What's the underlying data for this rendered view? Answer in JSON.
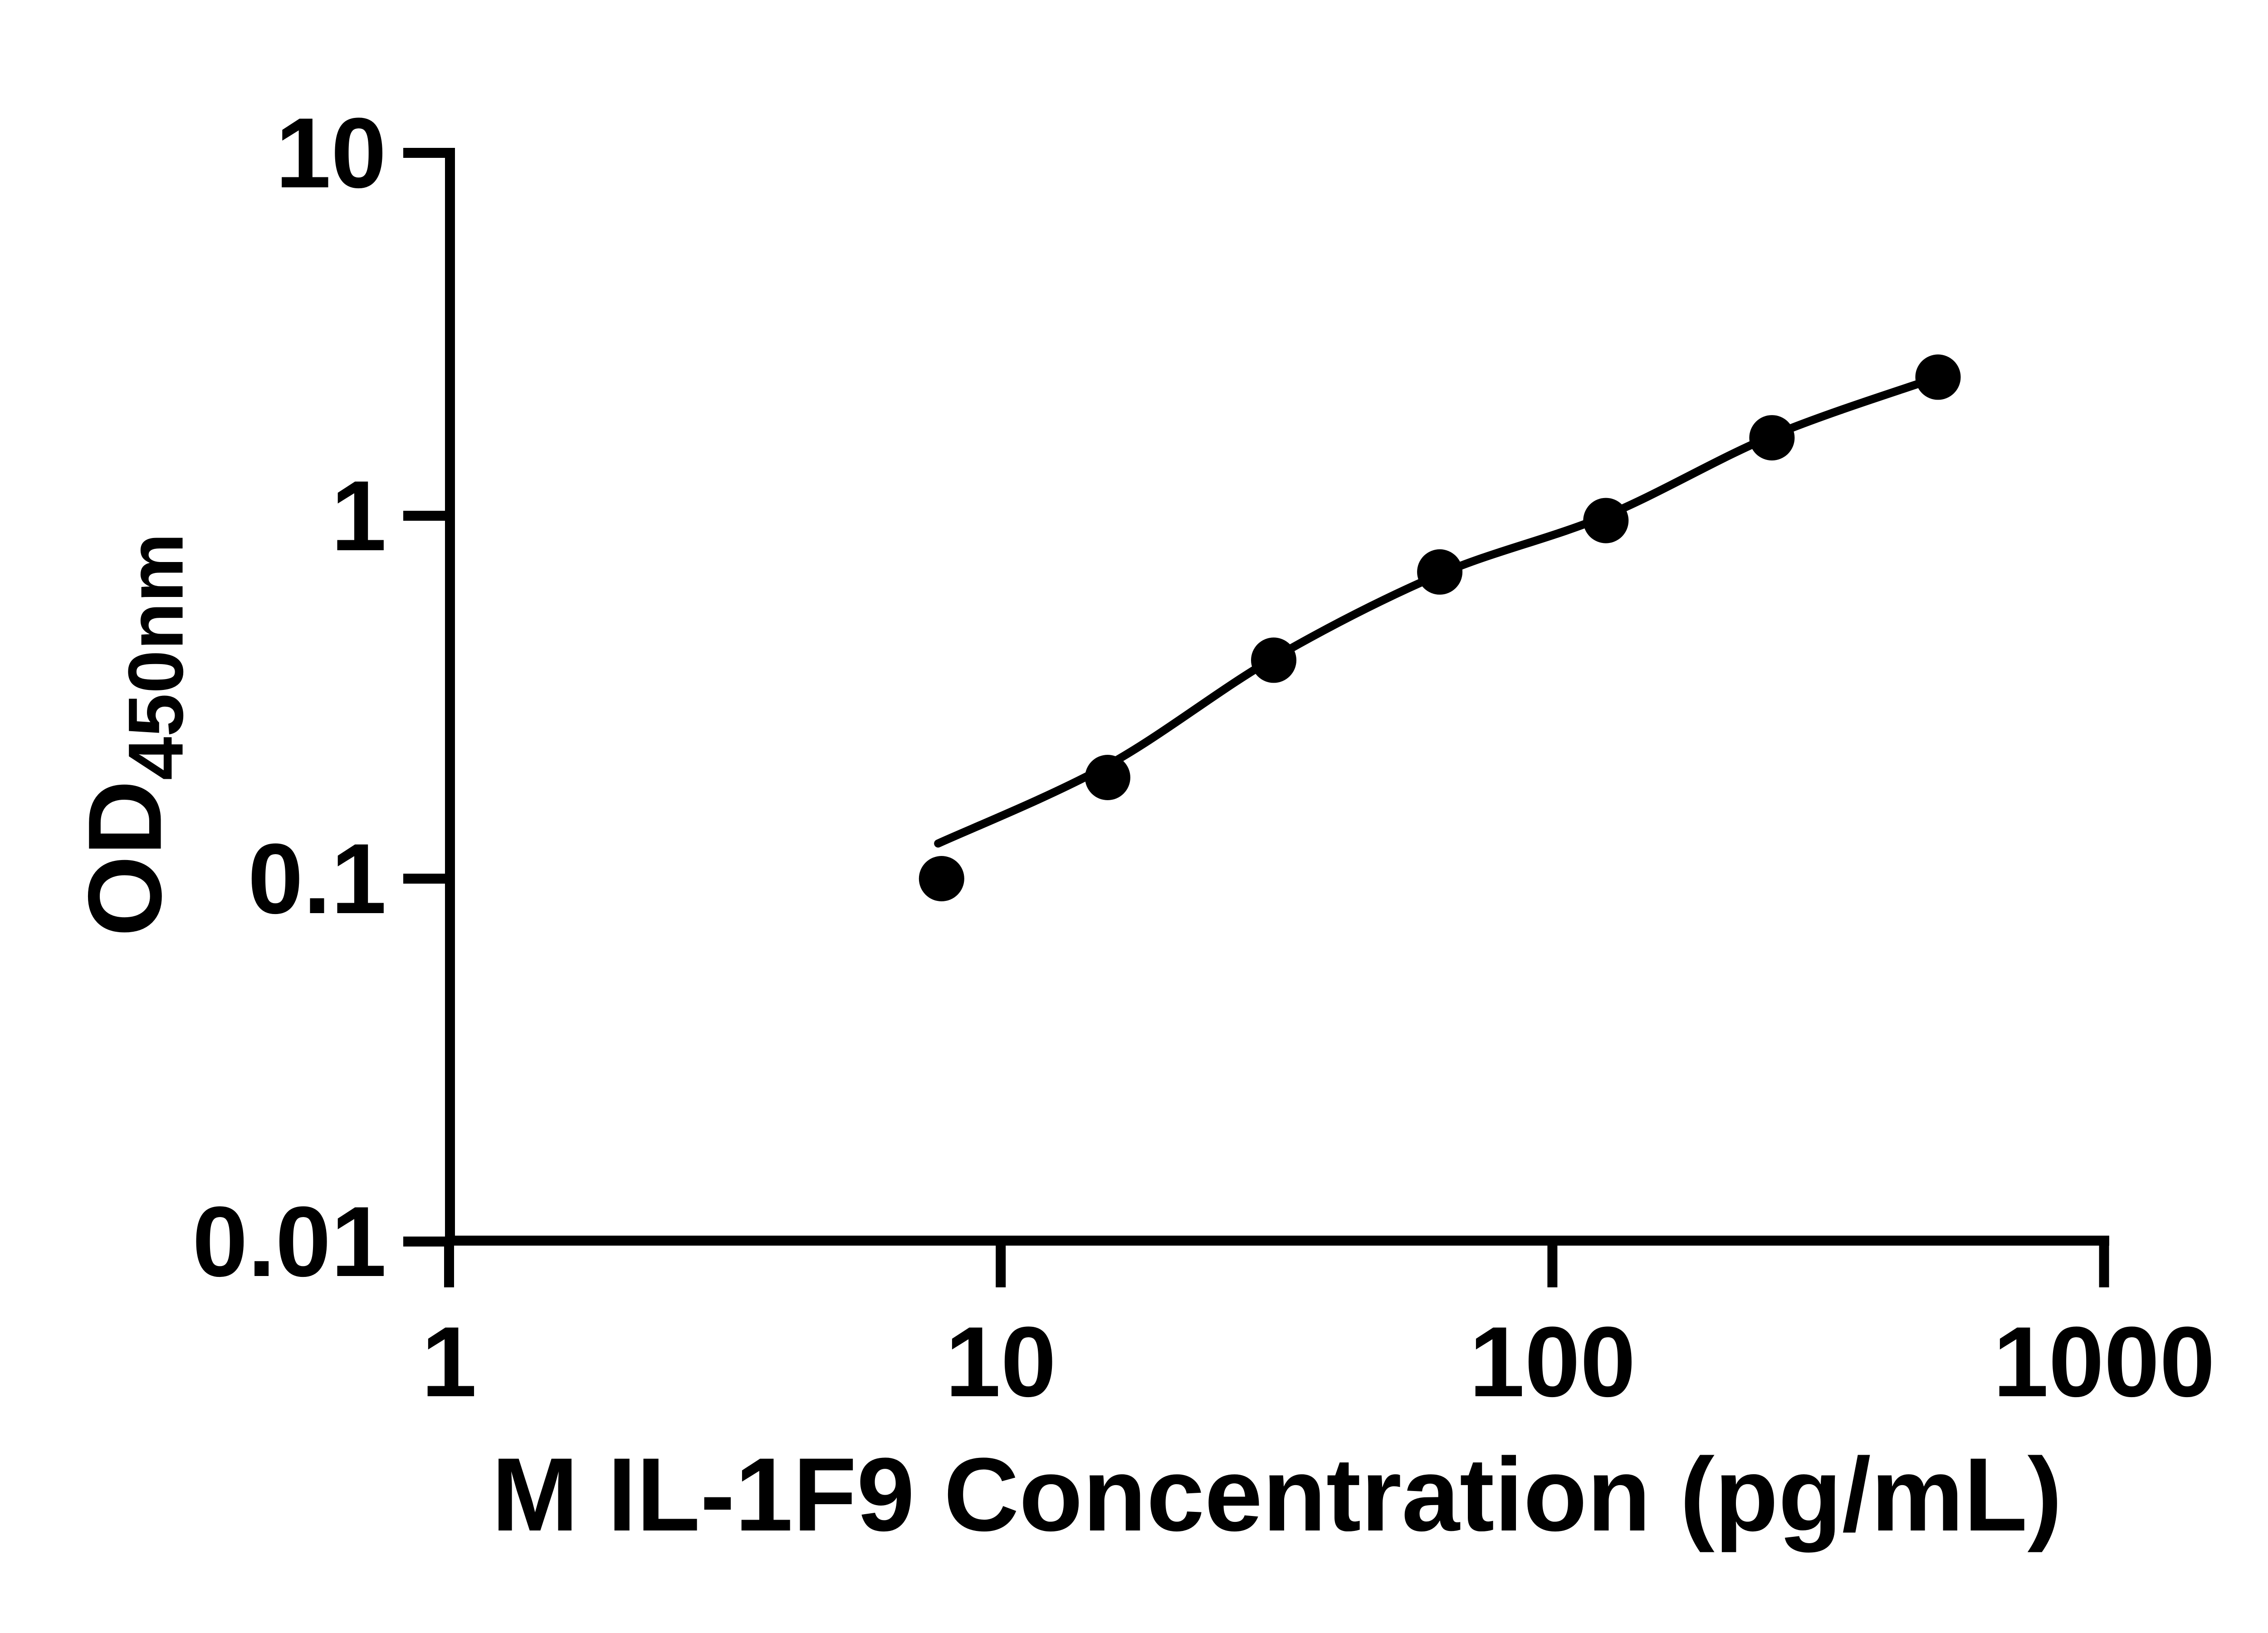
{
  "figure": {
    "background_color": "#ffffff",
    "ink_color": "#000000"
  },
  "chart_data": {
    "type": "scatter",
    "title": "",
    "xlabel": "M IL-1F9 Concentration (pg/mL)",
    "ylabel_main": "OD",
    "ylabel_subscript": "450nm",
    "x_scale": "log10",
    "y_scale": "log10",
    "xlim": [
      1,
      1000
    ],
    "ylim": [
      0.01,
      10
    ],
    "grid": false,
    "legend": null,
    "x_ticks": [
      {
        "value": 1,
        "label": "1"
      },
      {
        "value": 10,
        "label": "10"
      },
      {
        "value": 100,
        "label": "100"
      },
      {
        "value": 1000,
        "label": "1000"
      }
    ],
    "y_ticks": [
      {
        "value": 10,
        "label": "10"
      },
      {
        "value": 1,
        "label": "1"
      },
      {
        "value": 0.1,
        "label": "0.1"
      },
      {
        "value": 0.01,
        "label": "0.01"
      }
    ],
    "series": [
      {
        "name": "standard-curve-points",
        "marker": "filled-circle",
        "color": "#000000",
        "points": [
          {
            "x": 7.8125,
            "y": 0.1
          },
          {
            "x": 15.625,
            "y": 0.19
          },
          {
            "x": 31.25,
            "y": 0.4
          },
          {
            "x": 62.5,
            "y": 0.7
          },
          {
            "x": 125,
            "y": 0.97
          },
          {
            "x": 250,
            "y": 1.64
          },
          {
            "x": 500,
            "y": 2.41
          }
        ]
      }
    ],
    "fit_curve": {
      "name": "4pl-fit-line",
      "color": "#000000",
      "points": [
        {
          "x": 7.7,
          "y": 0.125
        },
        {
          "x": 15.6,
          "y": 0.205
        },
        {
          "x": 31.25,
          "y": 0.405
        },
        {
          "x": 62.5,
          "y": 0.69
        },
        {
          "x": 125,
          "y": 1.0
        },
        {
          "x": 250,
          "y": 1.66
        },
        {
          "x": 500,
          "y": 2.41
        }
      ]
    }
  }
}
